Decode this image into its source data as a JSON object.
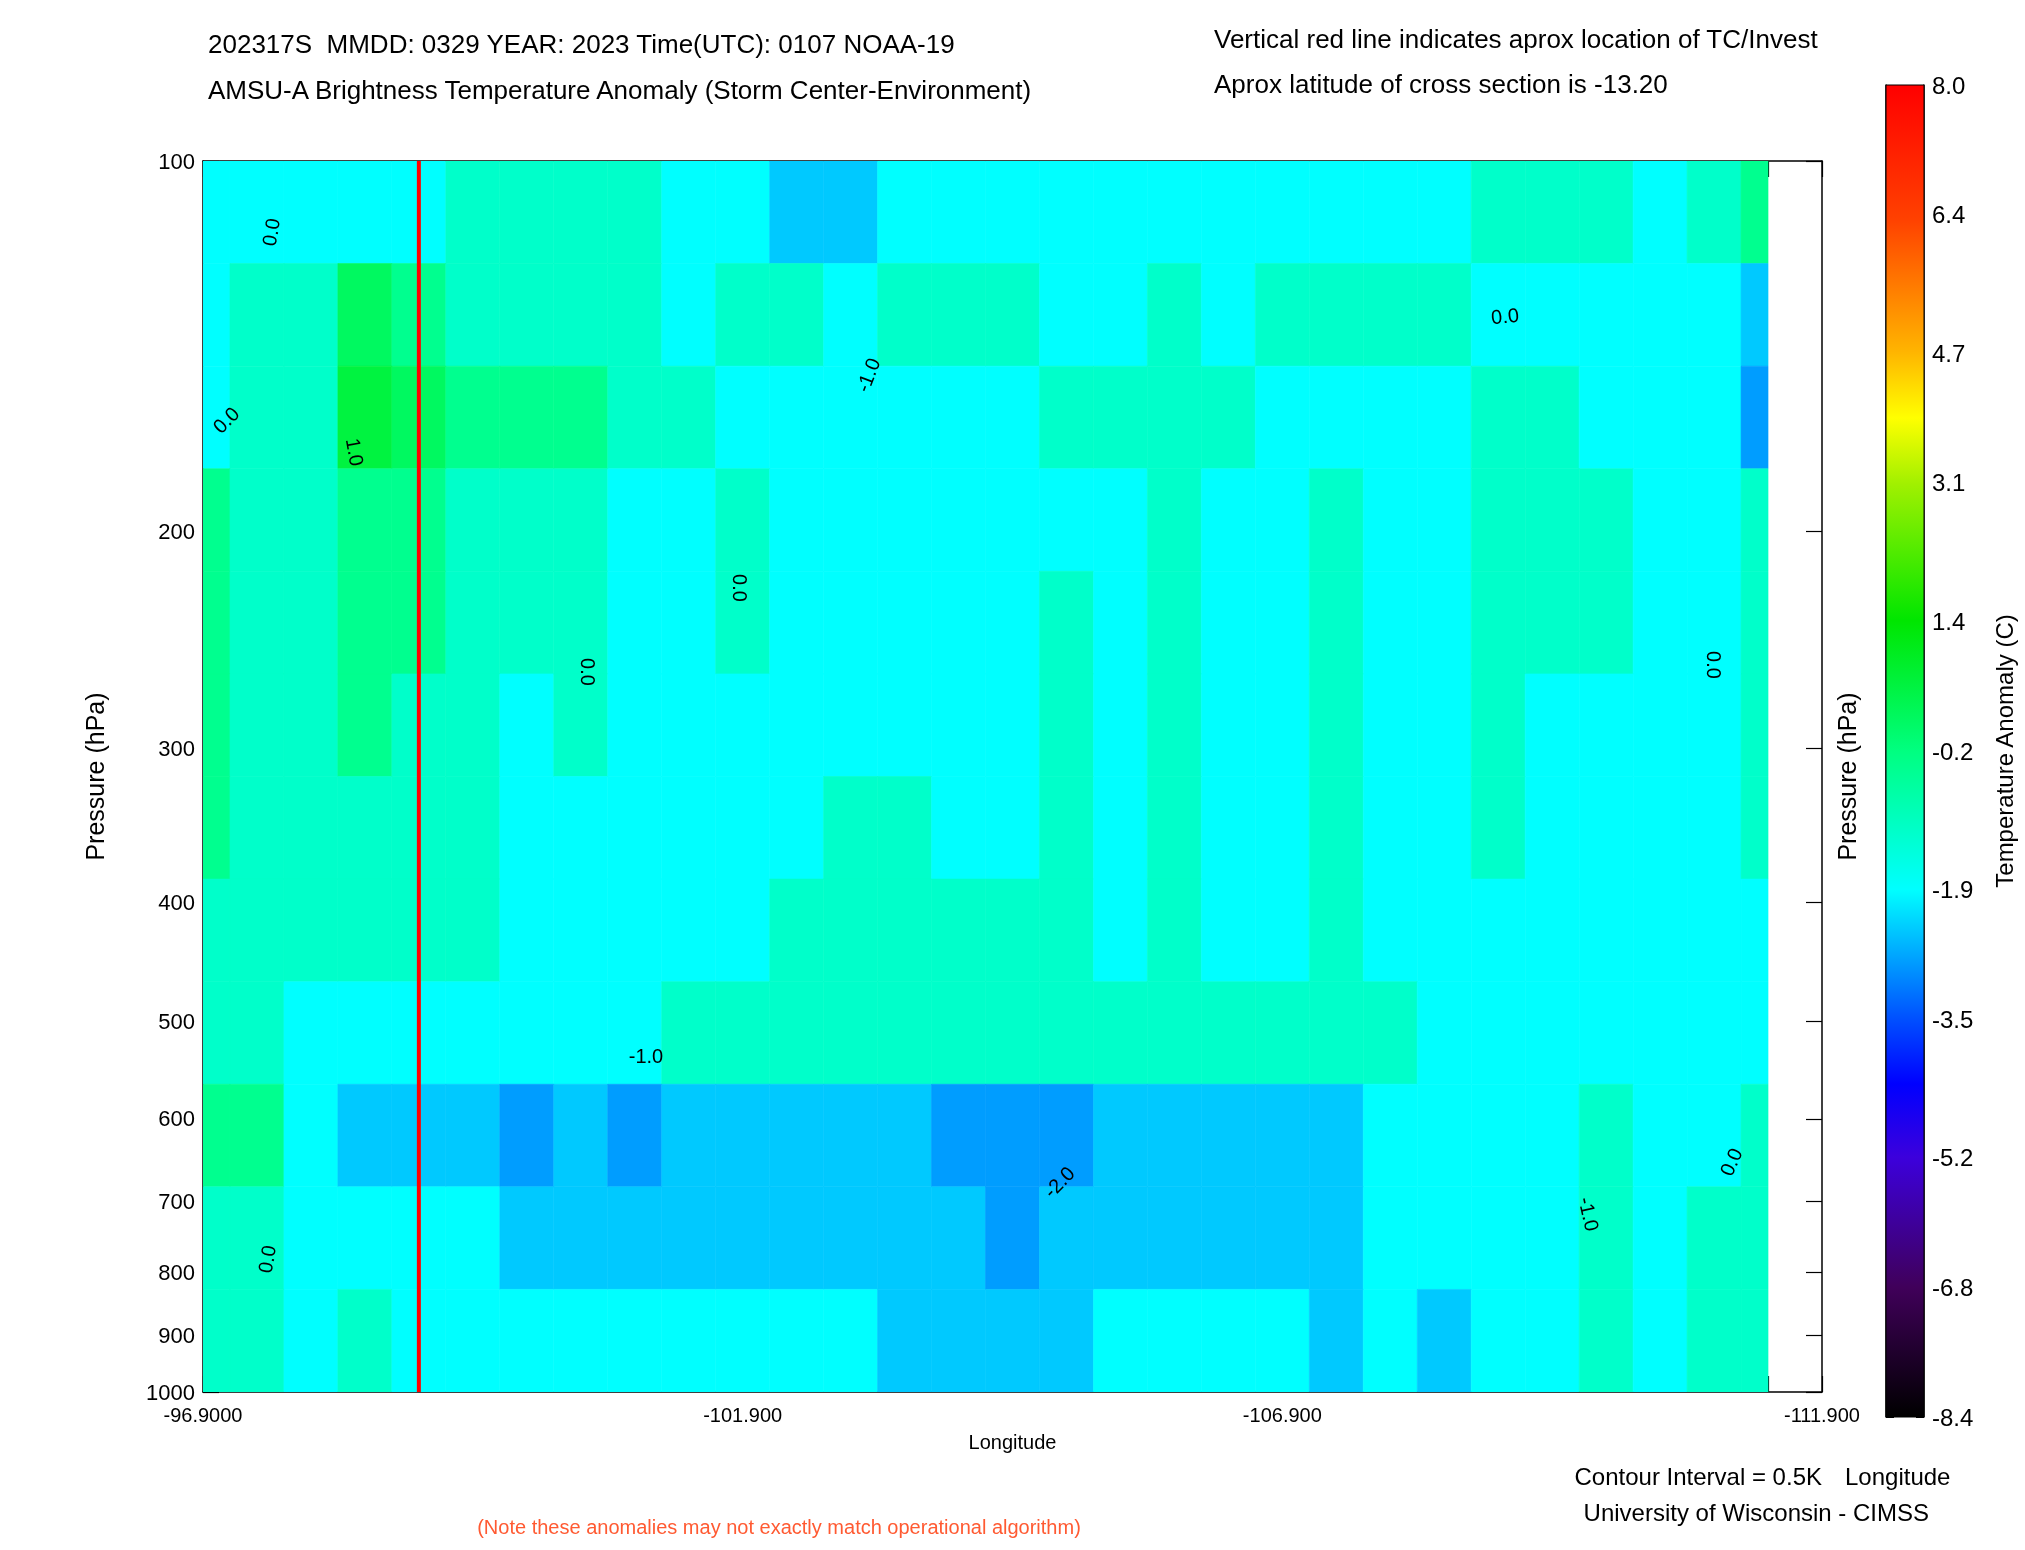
{
  "chart_data": {
    "type": "heatmap",
    "title": "202317S  MMDD: 0329 YEAR: 2023 Time(UTC): 0107 NOAA-19",
    "subtitle": "AMSU-A Brightness Temperature Anomaly (Storm Center-Environment)",
    "xlabel": "Longitude",
    "ylabel": "Pressure (hPa)",
    "y2label": "Pressure (hPa)",
    "clabel": "Temperature Anomaly (C)",
    "x": [
      -96.9,
      -97.4,
      -97.9,
      -98.4,
      -98.9,
      -99.4,
      -99.9,
      -100.4,
      -100.9,
      -101.4,
      -101.9,
      -102.4,
      -102.9,
      -103.4,
      -103.9,
      -104.4,
      -104.9,
      -105.4,
      -105.9,
      -106.4,
      -106.9,
      -107.4,
      -107.9,
      -108.4,
      -108.9,
      -109.4,
      -109.9,
      -110.4,
      -110.9,
      -111.4
    ],
    "cells": [
      [
        -1.9,
        -1.9,
        -1.9,
        -1.9,
        -1.9,
        -1.2,
        -1.2,
        -1.2,
        -1.2,
        -1.9,
        -1.9,
        -2.4,
        -2.4,
        -1.9,
        -1.9,
        -1.9,
        -1.9,
        -1.9,
        -1.9,
        -1.9,
        -1.9,
        -1.9,
        -1.9,
        -1.9,
        -1.2,
        -1.2,
        -1.2,
        -1.9,
        -1.2,
        -0.4
      ],
      [
        -1.9,
        -1.2,
        -1.2,
        0.2,
        -0.4,
        -1.2,
        -1.2,
        -1.2,
        -1.2,
        -1.9,
        -1.2,
        -1.2,
        -1.9,
        -1.2,
        -1.2,
        -1.2,
        -1.9,
        -1.9,
        -1.2,
        -1.9,
        -1.2,
        -1.2,
        -1.2,
        -1.2,
        -1.9,
        -1.9,
        -1.9,
        -1.9,
        -1.9,
        -2.4
      ],
      [
        -1.9,
        -1.2,
        -1.2,
        0.6,
        0.2,
        -0.4,
        -0.4,
        -0.4,
        -1.2,
        -1.2,
        -1.9,
        -1.9,
        -1.9,
        -1.9,
        -1.9,
        -1.9,
        -1.2,
        -1.2,
        -1.2,
        -1.2,
        -1.9,
        -1.9,
        -1.9,
        -1.9,
        -1.2,
        -1.2,
        -1.9,
        -1.9,
        -1.9,
        -2.8
      ],
      [
        -0.4,
        -1.2,
        -1.2,
        -0.4,
        -0.4,
        -1.2,
        -1.2,
        -1.2,
        -1.9,
        -1.9,
        -1.2,
        -1.9,
        -1.9,
        -1.9,
        -1.9,
        -1.9,
        -1.9,
        -1.9,
        -1.2,
        -1.9,
        -1.9,
        -1.2,
        -1.9,
        -1.9,
        -1.2,
        -1.2,
        -1.2,
        -1.9,
        -1.9,
        -1.2
      ],
      [
        -0.4,
        -1.2,
        -1.2,
        -0.4,
        -0.4,
        -1.2,
        -1.2,
        -1.2,
        -1.9,
        -1.9,
        -1.2,
        -1.9,
        -1.9,
        -1.9,
        -1.9,
        -1.9,
        -1.2,
        -1.9,
        -1.2,
        -1.9,
        -1.9,
        -1.2,
        -1.9,
        -1.9,
        -1.2,
        -1.2,
        -1.2,
        -1.9,
        -1.9,
        -1.2
      ],
      [
        -0.4,
        -1.2,
        -1.2,
        -0.4,
        -1.2,
        -1.2,
        -1.9,
        -1.2,
        -1.9,
        -1.9,
        -1.9,
        -1.9,
        -1.9,
        -1.9,
        -1.9,
        -1.9,
        -1.2,
        -1.9,
        -1.2,
        -1.9,
        -1.9,
        -1.2,
        -1.9,
        -1.9,
        -1.2,
        -1.9,
        -1.9,
        -1.9,
        -1.9,
        -1.2
      ],
      [
        -0.4,
        -1.2,
        -1.2,
        -1.2,
        -1.2,
        -1.2,
        -1.9,
        -1.9,
        -1.9,
        -1.9,
        -1.9,
        -1.9,
        -1.2,
        -1.2,
        -1.9,
        -1.9,
        -1.2,
        -1.9,
        -1.2,
        -1.9,
        -1.9,
        -1.2,
        -1.9,
        -1.9,
        -1.2,
        -1.9,
        -1.9,
        -1.9,
        -1.9,
        -1.2
      ],
      [
        -1.2,
        -1.2,
        -1.2,
        -1.2,
        -1.2,
        -1.2,
        -1.9,
        -1.9,
        -1.9,
        -1.9,
        -1.9,
        -1.2,
        -1.2,
        -1.2,
        -1.2,
        -1.2,
        -1.2,
        -1.9,
        -1.2,
        -1.9,
        -1.9,
        -1.2,
        -1.9,
        -1.9,
        -1.9,
        -1.9,
        -1.9,
        -1.9,
        -1.9,
        -1.9
      ],
      [
        -1.2,
        -1.2,
        -1.9,
        -1.9,
        -1.9,
        -1.9,
        -1.9,
        -1.9,
        -1.9,
        -1.2,
        -1.2,
        -1.2,
        -1.2,
        -1.2,
        -1.2,
        -1.2,
        -1.2,
        -1.2,
        -1.2,
        -1.2,
        -1.2,
        -1.2,
        -1.2,
        -1.9,
        -1.9,
        -1.9,
        -1.9,
        -1.9,
        -1.9,
        -1.9
      ],
      [
        -0.4,
        -0.4,
        -1.9,
        -2.4,
        -2.4,
        -2.4,
        -2.8,
        -2.4,
        -2.8,
        -2.4,
        -2.4,
        -2.4,
        -2.4,
        -2.4,
        -2.8,
        -2.8,
        -2.8,
        -2.4,
        -2.4,
        -2.4,
        -2.4,
        -2.4,
        -1.9,
        -1.9,
        -1.9,
        -1.9,
        -1.2,
        -1.9,
        -1.9,
        -1.2
      ],
      [
        -1.2,
        -1.2,
        -1.9,
        -1.9,
        -1.9,
        -1.9,
        -2.4,
        -2.4,
        -2.4,
        -2.4,
        -2.4,
        -2.4,
        -2.4,
        -2.4,
        -2.4,
        -2.8,
        -2.4,
        -2.4,
        -2.4,
        -2.4,
        -2.4,
        -2.4,
        -1.9,
        -1.9,
        -1.9,
        -1.9,
        -1.2,
        -1.9,
        -1.2,
        -1.2
      ],
      [
        -1.2,
        -1.2,
        -1.9,
        -1.2,
        -1.9,
        -1.9,
        -1.9,
        -1.9,
        -1.9,
        -1.9,
        -1.9,
        -1.9,
        -1.9,
        -2.4,
        -2.4,
        -2.4,
        -2.4,
        -1.9,
        -1.9,
        -1.9,
        -1.9,
        -2.4,
        -1.9,
        -2.4,
        -1.9,
        -1.9,
        -1.2,
        -1.9,
        -1.2,
        -1.2
      ]
    ],
    "xlim": [
      -96.9,
      -111.9
    ],
    "xticks": [
      {
        "value": -96.9,
        "label": "-96.9000"
      },
      {
        "value": -97.4,
        "label": null
      },
      {
        "value": -97.9,
        "label": null
      },
      {
        "value": -98.4,
        "label": null
      },
      {
        "value": -98.9,
        "label": null
      },
      {
        "value": -99.4,
        "label": null
      },
      {
        "value": -99.9,
        "label": null
      },
      {
        "value": -100.4,
        "label": null
      },
      {
        "value": -100.9,
        "label": null
      },
      {
        "value": -101.4,
        "label": null
      },
      {
        "value": -101.9,
        "label": "-101.900"
      },
      {
        "value": -102.4,
        "label": null
      },
      {
        "value": -102.9,
        "label": null
      },
      {
        "value": -103.4,
        "label": null
      },
      {
        "value": -103.9,
        "label": null
      },
      {
        "value": -104.4,
        "label": null
      },
      {
        "value": -104.9,
        "label": null
      },
      {
        "value": -105.4,
        "label": null
      },
      {
        "value": -105.9,
        "label": null
      },
      {
        "value": -106.4,
        "label": null
      },
      {
        "value": -106.9,
        "label": "-106.900"
      },
      {
        "value": -107.4,
        "label": null
      },
      {
        "value": -107.9,
        "label": null
      },
      {
        "value": -108.4,
        "label": null
      },
      {
        "value": -108.9,
        "label": null
      },
      {
        "value": -109.4,
        "label": null
      },
      {
        "value": -109.9,
        "label": null
      },
      {
        "value": -110.4,
        "label": null
      },
      {
        "value": -110.9,
        "label": null
      },
      {
        "value": -111.4,
        "label": null
      },
      {
        "value": -111.9,
        "label": "-111.900"
      }
    ],
    "ylim": [
      1000,
      100
    ],
    "yticks": [
      100,
      200,
      300,
      400,
      500,
      600,
      700,
      800,
      900,
      1000
    ],
    "log": "y",
    "clim": [
      -8.4,
      8.0
    ],
    "cticks": [
      -8.4,
      -6.8,
      -5.2,
      -3.5,
      -1.9,
      -0.2,
      1.4,
      3.1,
      4.7,
      6.4,
      {
        "value": 8.0,
        "label": "8.0"
      }
    ],
    "ref_lines": [
      {
        "axis": "x",
        "value": -98.9,
        "color": "#ff0000"
      }
    ],
    "annotations": [
      "Vertical red line indicates aprox location of TC/Invest",
      "Aprox latitude of cross section is -13.20",
      "Contour Interval = 0.5K",
      "Longitude",
      "University of Wisconsin - CIMSS",
      "(Note these anomalies may not exactly match operational algorithm)",
      "0.0",
      "0.0",
      "1.0",
      "0.0",
      "0.0",
      "-1.0",
      "0.0",
      "0.0",
      "-1.0",
      "0.0",
      "-2.0",
      "-1.0",
      "0.0"
    ]
  }
}
